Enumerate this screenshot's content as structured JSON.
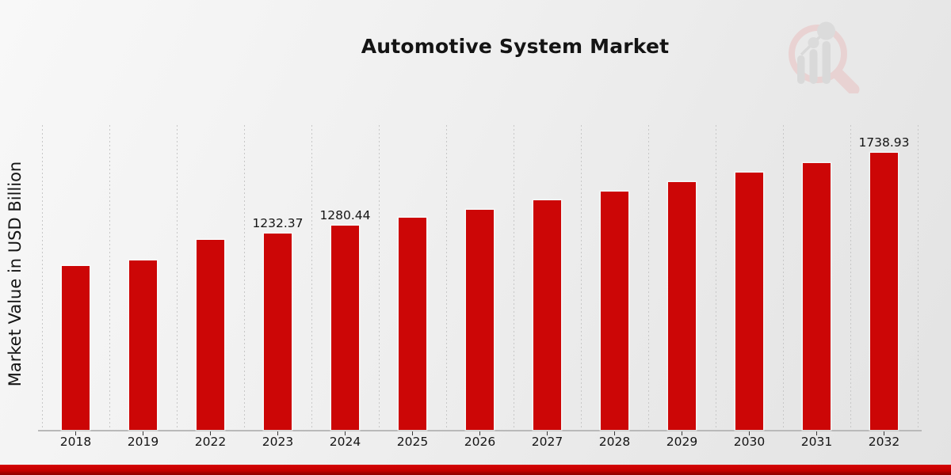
{
  "page": {
    "title": "Automotive System Market",
    "y_axis_label": "Market Value in USD Billion"
  },
  "colors": {
    "bar": "#cc0606",
    "footer_red_top": "#d40404",
    "footer_red_bottom": "#8e0000",
    "gridline": "#c7c7c7",
    "axis_line": "#b9b9b9",
    "tick": "#3a3a3a",
    "text": "#141414",
    "background_light": "#f8f8f8",
    "background_dark": "#e3e3e3",
    "watermark_pink": "#e9cfcf",
    "watermark_gray": "#d7d7d7"
  },
  "watermark": {
    "icon": "magnifier-bar-chart-logo"
  },
  "chart_data": {
    "type": "bar",
    "title": "Automotive System Market",
    "xlabel": "",
    "ylabel": "Market Value in USD Billion",
    "categories": [
      "2018",
      "2019",
      "2022",
      "2023",
      "2024",
      "2025",
      "2026",
      "2027",
      "2028",
      "2029",
      "2030",
      "2031",
      "2032"
    ],
    "values": [
      1026,
      1061,
      1190,
      1232.37,
      1280.44,
      1331,
      1382,
      1437,
      1492,
      1551,
      1611,
      1674,
      1738.93
    ],
    "data_labels": {
      "2023": "1232.37",
      "2024": "1280.44",
      "2032": "1738.93"
    },
    "bar_color": "#cc0606",
    "grid": "vertical-dashed",
    "legend": "none",
    "y_axis_tick_labels": "none",
    "ylim": [
      0,
      1910
    ],
    "units": "USD Billion"
  }
}
